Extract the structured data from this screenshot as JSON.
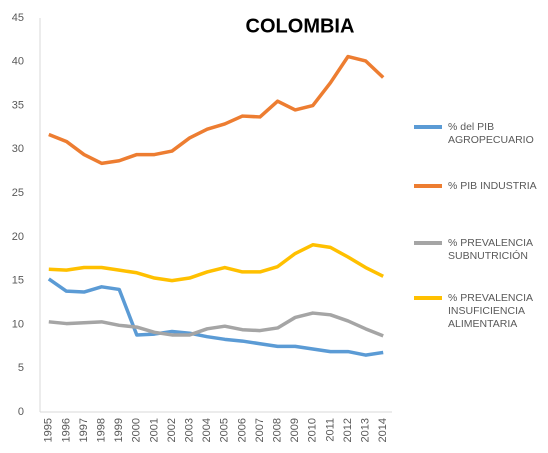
{
  "chart_data": {
    "type": "line",
    "title": "COLOMBIA",
    "categories": [
      "1995",
      "1996",
      "1997",
      "1998",
      "1999",
      "2000",
      "2001",
      "2002",
      "2003",
      "2004",
      "2005",
      "2006",
      "2007",
      "2008",
      "2009",
      "2010",
      "2011",
      "2012",
      "2013",
      "2014"
    ],
    "series": [
      {
        "name": "% del PIB AGROPECUARIO",
        "color": "#5b9bd5",
        "values": [
          15.2,
          13.8,
          13.7,
          14.3,
          14.0,
          8.8,
          8.9,
          9.2,
          9.0,
          8.6,
          8.3,
          8.1,
          7.8,
          7.5,
          7.5,
          7.2,
          6.9,
          6.9,
          6.5,
          6.8
        ]
      },
      {
        "name": "% PIB INDUSTRIA",
        "color": "#ed7d31",
        "values": [
          31.7,
          30.9,
          29.4,
          28.4,
          28.7,
          29.4,
          29.4,
          29.8,
          31.3,
          32.3,
          32.9,
          33.8,
          33.7,
          35.5,
          34.5,
          35.0,
          37.6,
          40.6,
          40.1,
          38.2
        ]
      },
      {
        "name": "% PREVALENCIA SUBNUTRICIÓN",
        "color": "#a5a5a5",
        "values": [
          10.3,
          10.1,
          10.2,
          10.3,
          9.9,
          9.7,
          9.1,
          8.8,
          8.8,
          9.5,
          9.8,
          9.4,
          9.3,
          9.6,
          10.8,
          11.3,
          11.1,
          10.4,
          9.5,
          8.7
        ]
      },
      {
        "name": "% PREVALENCIA INSUFICIENCIA ALIMENTARIA",
        "color": "#ffc000",
        "values": [
          16.3,
          16.2,
          16.5,
          16.5,
          16.2,
          15.9,
          15.3,
          15.0,
          15.3,
          16.0,
          16.5,
          16.0,
          16.0,
          16.6,
          18.1,
          19.1,
          18.8,
          17.7,
          16.5,
          15.5
        ]
      }
    ],
    "ylim": [
      0,
      45
    ],
    "yticks": [
      0,
      5,
      10,
      15,
      20,
      25,
      30,
      35,
      40,
      45
    ],
    "legend": "right"
  }
}
